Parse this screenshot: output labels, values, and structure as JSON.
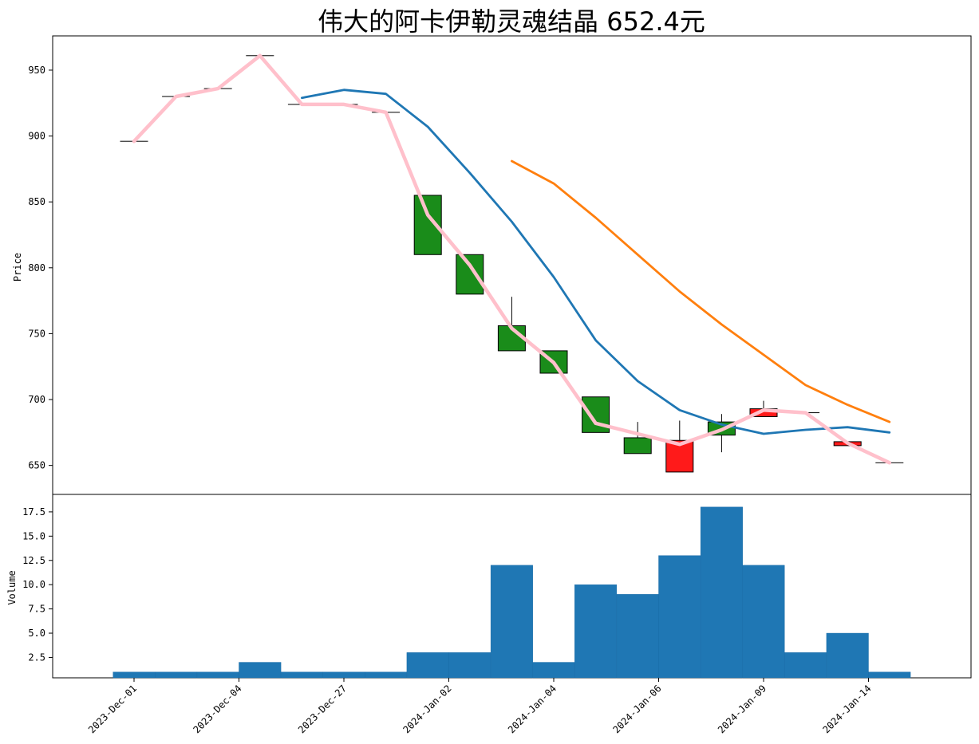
{
  "chart_data": [
    {
      "type": "candlestick",
      "title": "伟大的阿卡伊勒灵魂结晶  652.4元",
      "xlabel": "",
      "ylabel": "Price",
      "ylim": [
        628,
        976
      ],
      "yticks": [
        650,
        700,
        750,
        800,
        850,
        900,
        950
      ],
      "x_tick_labels": [
        {
          "index": 0,
          "label": "2023-Dec-01"
        },
        {
          "index": 2.5,
          "label": "2023-Dec-04"
        },
        {
          "index": 5,
          "label": "2023-Dec-27"
        },
        {
          "index": 7.5,
          "label": "2024-Jan-02"
        },
        {
          "index": 10,
          "label": "2024-Jan-04"
        },
        {
          "index": 12.5,
          "label": "2024-Jan-06"
        },
        {
          "index": 15,
          "label": "2024-Jan-09"
        },
        {
          "index": 17.5,
          "label": "2024-Jan-14"
        }
      ],
      "candles": [
        {
          "open": 896,
          "high": 896,
          "low": 896,
          "close": 896
        },
        {
          "open": 930,
          "high": 930,
          "low": 930,
          "close": 930
        },
        {
          "open": 936,
          "high": 936,
          "low": 936,
          "close": 936
        },
        {
          "open": 961,
          "high": 961,
          "low": 961,
          "close": 961
        },
        {
          "open": 924,
          "high": 924,
          "low": 924,
          "close": 924
        },
        {
          "open": 924,
          "high": 924,
          "low": 924,
          "close": 924
        },
        {
          "open": 918,
          "high": 918,
          "low": 918,
          "close": 918
        },
        {
          "open": 855,
          "high": 855,
          "low": 810,
          "close": 810
        },
        {
          "open": 810,
          "high": 810,
          "low": 780,
          "close": 780
        },
        {
          "open": 756,
          "high": 778,
          "low": 737,
          "close": 737
        },
        {
          "open": 737,
          "high": 737,
          "low": 720,
          "close": 720
        },
        {
          "open": 702,
          "high": 702,
          "low": 675,
          "close": 675
        },
        {
          "open": 671,
          "high": 683,
          "low": 659,
          "close": 659
        },
        {
          "open": 645,
          "high": 684,
          "low": 645,
          "close": 669
        },
        {
          "open": 683,
          "high": 689,
          "low": 660,
          "close": 673
        },
        {
          "open": 687,
          "high": 699,
          "low": 687,
          "close": 693
        },
        {
          "open": 690,
          "high": 690,
          "low": 690,
          "close": 690
        },
        {
          "open": 665,
          "high": 668,
          "low": 665,
          "close": 668
        },
        {
          "open": 652,
          "high": 652,
          "low": 652,
          "close": 652
        }
      ],
      "up_color": "#ff1a1a",
      "down_color": "#1a8c1a",
      "series": [
        {
          "color": "#1f77b4",
          "start_index": 4,
          "values": [
            929,
            935,
            932,
            907,
            872,
            835,
            793,
            745,
            714,
            692,
            681,
            674,
            677,
            679,
            675
          ]
        },
        {
          "color": "#ff7f0e",
          "start_index": 9,
          "values": [
            881,
            864,
            838,
            810,
            782,
            757,
            734,
            711,
            696,
            683
          ]
        },
        {
          "color": "#ffc0cb",
          "start_index": 0,
          "values": [
            896,
            930,
            936,
            961,
            924,
            924,
            918,
            840,
            802,
            754,
            728,
            682,
            674,
            666,
            677,
            692,
            690,
            667,
            652
          ]
        }
      ]
    },
    {
      "type": "bar",
      "xlabel": "",
      "ylabel": "Volume",
      "ylim": [
        0.4,
        19.3
      ],
      "yticks": [
        2.5,
        5.0,
        7.5,
        10.0,
        12.5,
        15.0,
        17.5
      ],
      "ytick_labels": [
        "2.5",
        "5.0",
        "7.5",
        "10.0",
        "12.5",
        "15.0",
        "17.5"
      ],
      "color": "#1f77b4",
      "values": [
        1,
        1,
        1,
        2,
        1,
        1,
        1,
        3,
        3,
        12,
        2,
        10,
        9,
        13,
        18,
        12,
        3,
        5,
        1
      ]
    }
  ]
}
